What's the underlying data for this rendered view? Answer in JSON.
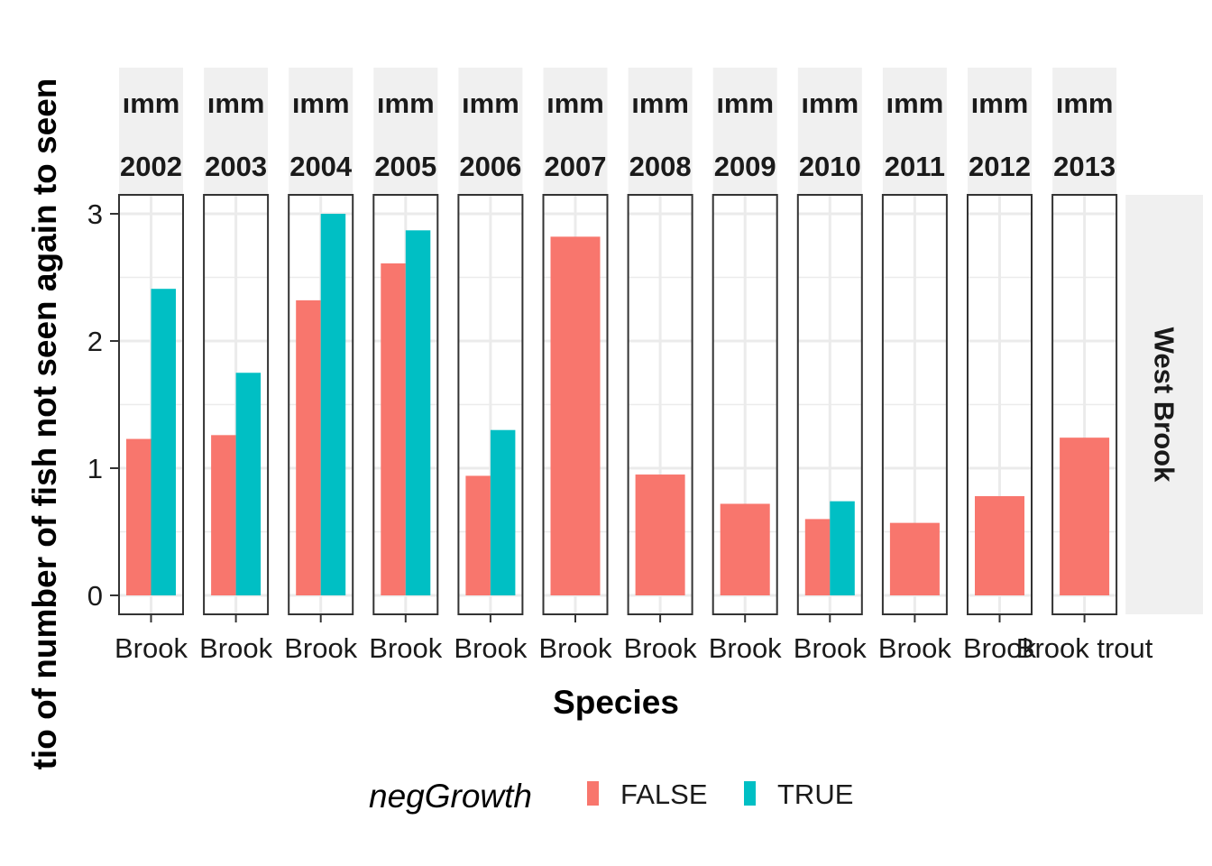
{
  "colors": {
    "FALSE": "#F8766D",
    "TRUE": "#00BFC4",
    "strip_bg": "#F0F0F0",
    "grid": "#EBEBEB",
    "panel_border": "#333333"
  },
  "chart_data": {
    "type": "bar",
    "xlabel": "Species",
    "ylabel": "tio of number of fish not seen again to seen",
    "ylim": [
      0,
      3
    ],
    "yticks": [
      0,
      1,
      2,
      3
    ],
    "row_strip": "West Brook",
    "legend": {
      "title": "negGrowth",
      "position": "bottom",
      "entries": [
        "FALSE",
        "TRUE"
      ]
    },
    "grid": true,
    "x_tick_labels": [
      "Brook",
      "Brook",
      "Brook",
      "Brook",
      "Brook",
      "Brook",
      "Brook",
      "Brook",
      "Brook",
      "Brook",
      "Brook",
      "Brook trout"
    ],
    "panels": [
      {
        "strip_top": "ımm",
        "strip_bottom": "2002",
        "category": "Brook trout",
        "FALSE": 1.23,
        "TRUE": 2.41
      },
      {
        "strip_top": "ımm",
        "strip_bottom": "2003",
        "category": "Brook trout",
        "FALSE": 1.26,
        "TRUE": 1.75
      },
      {
        "strip_top": "ımm",
        "strip_bottom": "2004",
        "category": "Brook trout",
        "FALSE": 2.32,
        "TRUE": 3.0
      },
      {
        "strip_top": "ımm",
        "strip_bottom": "2005",
        "category": "Brook trout",
        "FALSE": 2.61,
        "TRUE": 2.87
      },
      {
        "strip_top": "ımm",
        "strip_bottom": "2006",
        "category": "Brook trout",
        "FALSE": 0.94,
        "TRUE": 1.3
      },
      {
        "strip_top": "ımm",
        "strip_bottom": "2007",
        "category": "Brook trout",
        "FALSE": 2.82,
        "TRUE": null
      },
      {
        "strip_top": "ımm",
        "strip_bottom": "2008",
        "category": "Brook trout",
        "FALSE": 0.95,
        "TRUE": null
      },
      {
        "strip_top": "ımm",
        "strip_bottom": "2009",
        "category": "Brook trout",
        "FALSE": 0.72,
        "TRUE": null
      },
      {
        "strip_top": "ımm",
        "strip_bottom": "2010",
        "category": "Brook trout",
        "FALSE": 0.6,
        "TRUE": 0.74
      },
      {
        "strip_top": "ımm",
        "strip_bottom": "2011",
        "category": "Brook trout",
        "FALSE": 0.57,
        "TRUE": null
      },
      {
        "strip_top": "ımm",
        "strip_bottom": "2012",
        "category": "Brook trout",
        "FALSE": 0.78,
        "TRUE": null
      },
      {
        "strip_top": "ımm",
        "strip_bottom": "2013",
        "category": "Brook trout",
        "FALSE": 1.24,
        "TRUE": null
      }
    ]
  }
}
